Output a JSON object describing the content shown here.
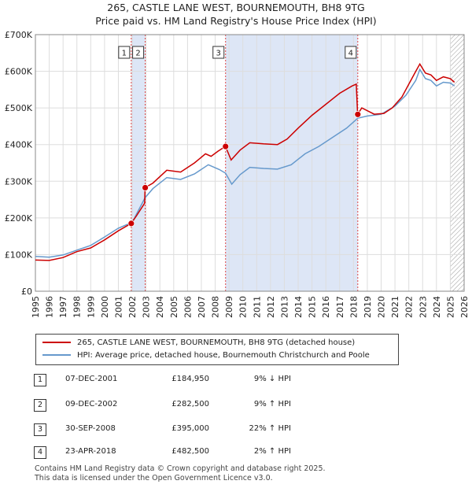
{
  "title": "265, CASTLE LANE WEST, BOURNEMOUTH, BH8 9TG",
  "subtitle": "Price paid vs. HM Land Registry's House Price Index (HPI)",
  "colors": {
    "property": "#cc0000",
    "hpi": "#6699cc",
    "shade": "#dde6f6"
  },
  "chart_data": {
    "type": "line",
    "x_range": [
      1995,
      2026
    ],
    "ylim": [
      0,
      700000
    ],
    "y_ticks": [
      0,
      100000,
      200000,
      300000,
      400000,
      500000,
      600000,
      700000
    ],
    "y_tick_labels": [
      "£0",
      "£100K",
      "£200K",
      "£300K",
      "£400K",
      "£500K",
      "£600K",
      "£700K"
    ],
    "x_ticks": [
      1995,
      1996,
      1997,
      1998,
      1999,
      2000,
      2001,
      2002,
      2003,
      2004,
      2005,
      2006,
      2007,
      2008,
      2009,
      2010,
      2011,
      2012,
      2013,
      2014,
      2015,
      2016,
      2017,
      2018,
      2019,
      2020,
      2021,
      2022,
      2023,
      2024,
      2025,
      2026
    ],
    "x_tick_labels": [
      "1995",
      "1996",
      "1997",
      "1998",
      "1999",
      "2000",
      "2001",
      "2002",
      "2003",
      "2004",
      "2005",
      "2006",
      "2007",
      "2008",
      "2009",
      "2010",
      "2011",
      "2012",
      "2013",
      "2014",
      "2015",
      "2016",
      "2017",
      "2018",
      "2019",
      "2020",
      "2021",
      "2022",
      "2023",
      "2024",
      "2025",
      "2026"
    ],
    "shaded_ranges": [
      [
        2001.93,
        2002.94
      ],
      [
        2008.75,
        2018.31
      ]
    ],
    "hatched_from": 2025.0,
    "series": [
      {
        "name": "265, CASTLE LANE WEST, BOURNEMOUTH, BH8 9TG (detached house)",
        "points": [
          [
            1995.0,
            85000
          ],
          [
            1996.0,
            84000
          ],
          [
            1997.0,
            92000
          ],
          [
            1998.0,
            108000
          ],
          [
            1999.0,
            118000
          ],
          [
            2000.0,
            140000
          ],
          [
            2001.0,
            165000
          ],
          [
            2001.92,
            184950
          ],
          [
            2002.3,
            205000
          ],
          [
            2002.9,
            240000
          ],
          [
            2002.93,
            282500
          ],
          [
            2003.5,
            295000
          ],
          [
            2004.5,
            330000
          ],
          [
            2005.5,
            325000
          ],
          [
            2006.5,
            350000
          ],
          [
            2007.3,
            375000
          ],
          [
            2007.7,
            368000
          ],
          [
            2008.2,
            382000
          ],
          [
            2008.74,
            395000
          ],
          [
            2009.15,
            358000
          ],
          [
            2009.8,
            385000
          ],
          [
            2010.5,
            405000
          ],
          [
            2011.5,
            402000
          ],
          [
            2012.5,
            400000
          ],
          [
            2013.2,
            415000
          ],
          [
            2014.0,
            445000
          ],
          [
            2015.0,
            480000
          ],
          [
            2016.0,
            510000
          ],
          [
            2017.0,
            540000
          ],
          [
            2017.9,
            560000
          ],
          [
            2018.2,
            565000
          ],
          [
            2018.3,
            482500
          ],
          [
            2018.6,
            500000
          ],
          [
            2019.5,
            483000
          ],
          [
            2020.2,
            485000
          ],
          [
            2020.8,
            500000
          ],
          [
            2021.5,
            530000
          ],
          [
            2022.0,
            565000
          ],
          [
            2022.5,
            600000
          ],
          [
            2022.8,
            620000
          ],
          [
            2023.2,
            595000
          ],
          [
            2023.6,
            590000
          ],
          [
            2024.0,
            575000
          ],
          [
            2024.5,
            585000
          ],
          [
            2025.0,
            580000
          ],
          [
            2025.3,
            570000
          ]
        ]
      },
      {
        "name": "HPI: Average price, detached house, Bournemouth Christchurch and Poole",
        "points": [
          [
            1995.0,
            95000
          ],
          [
            1996.0,
            93000
          ],
          [
            1997.0,
            99000
          ],
          [
            1998.0,
            112000
          ],
          [
            1999.0,
            125000
          ],
          [
            2000.0,
            148000
          ],
          [
            2001.0,
            172000
          ],
          [
            2002.0,
            188000
          ],
          [
            2002.93,
            255000
          ],
          [
            2003.5,
            280000
          ],
          [
            2004.5,
            310000
          ],
          [
            2005.5,
            305000
          ],
          [
            2006.5,
            320000
          ],
          [
            2007.5,
            345000
          ],
          [
            2008.3,
            332000
          ],
          [
            2008.75,
            322000
          ],
          [
            2009.2,
            292000
          ],
          [
            2009.8,
            318000
          ],
          [
            2010.5,
            338000
          ],
          [
            2011.5,
            335000
          ],
          [
            2012.5,
            333000
          ],
          [
            2013.5,
            345000
          ],
          [
            2014.5,
            375000
          ],
          [
            2015.5,
            395000
          ],
          [
            2016.5,
            420000
          ],
          [
            2017.5,
            445000
          ],
          [
            2018.31,
            472000
          ],
          [
            2019.0,
            478000
          ],
          [
            2020.0,
            483000
          ],
          [
            2021.0,
            505000
          ],
          [
            2021.8,
            535000
          ],
          [
            2022.5,
            575000
          ],
          [
            2022.8,
            605000
          ],
          [
            2023.2,
            580000
          ],
          [
            2023.6,
            575000
          ],
          [
            2024.0,
            560000
          ],
          [
            2024.5,
            570000
          ],
          [
            2025.0,
            568000
          ],
          [
            2025.3,
            560000
          ]
        ]
      }
    ],
    "annotations": [
      {
        "label": "1",
        "x": 2001.93,
        "y": 184950
      },
      {
        "label": "2",
        "x": 2002.94,
        "y": 282500
      },
      {
        "label": "3",
        "x": 2008.75,
        "y": 395000
      },
      {
        "label": "4",
        "x": 2018.31,
        "y": 482500
      }
    ]
  },
  "legend": {
    "property_label": "265, CASTLE LANE WEST, BOURNEMOUTH, BH8 9TG (detached house)",
    "hpi_label": "HPI: Average price, detached house, Bournemouth Christchurch and Poole"
  },
  "transactions": [
    {
      "num": "1",
      "date": "07-DEC-2001",
      "price": "£184,950",
      "hpi": "9% ↓ HPI"
    },
    {
      "num": "2",
      "date": "09-DEC-2002",
      "price": "£282,500",
      "hpi": "9% ↑ HPI"
    },
    {
      "num": "3",
      "date": "30-SEP-2008",
      "price": "£395,000",
      "hpi": "22% ↑ HPI"
    },
    {
      "num": "4",
      "date": "23-APR-2018",
      "price": "£482,500",
      "hpi": "2% ↑ HPI"
    }
  ],
  "footer": {
    "line1": "Contains HM Land Registry data © Crown copyright and database right 2025.",
    "line2": "This data is licensed under the Open Government Licence v3.0."
  }
}
